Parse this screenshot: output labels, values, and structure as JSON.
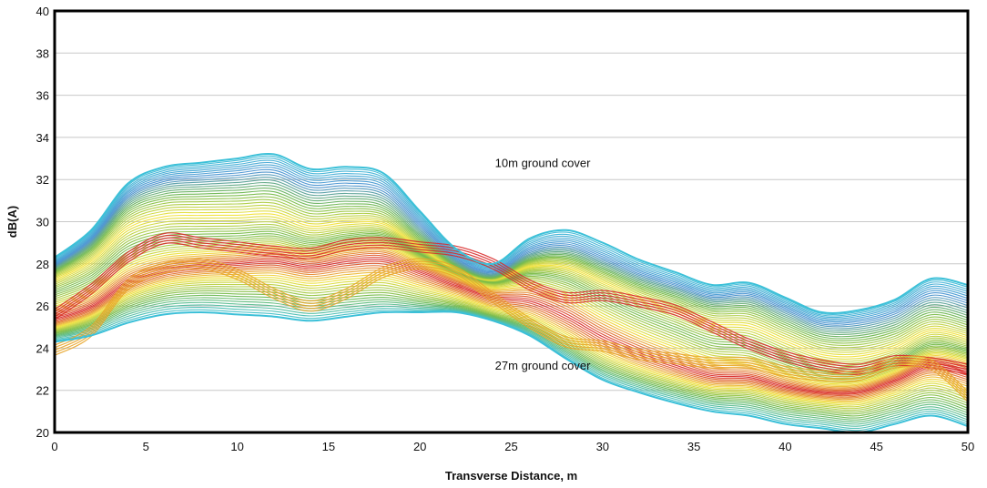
{
  "chart_data": {
    "type": "line",
    "title": "",
    "xlabel": "Transverse Distance, m",
    "ylabel": "dB(A)",
    "xlim": [
      0,
      50
    ],
    "ylim": [
      20,
      40
    ],
    "x_ticks": [
      "0",
      "5",
      "10",
      "15",
      "20",
      "25",
      "30",
      "35",
      "40",
      "45",
      "50"
    ],
    "y_ticks": [
      "20",
      "22",
      "24",
      "26",
      "28",
      "30",
      "32",
      "34",
      "36",
      "38",
      "40"
    ],
    "grid": "horizontal",
    "legend": "none",
    "annotations": [
      {
        "text": "10m ground cover",
        "x": 28,
        "y": 32.8
      },
      {
        "text": "27m ground cover",
        "x": 28,
        "y": 23.2
      }
    ],
    "series_count": 70,
    "color_ramp": [
      "#3cc0d8",
      "#4a90d0",
      "#6fb84a",
      "#f2e23a",
      "#e8a52a",
      "#d82b2b"
    ],
    "x": [
      0,
      2,
      4,
      6,
      8,
      10,
      12,
      14,
      16,
      18,
      20,
      22,
      24,
      26,
      28,
      30,
      32,
      34,
      36,
      38,
      40,
      42,
      44,
      46,
      48,
      50
    ],
    "envelope_top": [
      28.3,
      29.6,
      31.8,
      32.6,
      32.8,
      33.0,
      33.2,
      32.5,
      32.6,
      32.3,
      30.5,
      28.7,
      28.0,
      29.2,
      29.6,
      29.0,
      28.2,
      27.6,
      27.0,
      27.1,
      26.4,
      25.7,
      25.8,
      26.3,
      27.3,
      27.0
    ],
    "envelope_bottom": [
      24.3,
      24.6,
      25.2,
      25.6,
      25.7,
      25.6,
      25.5,
      25.3,
      25.5,
      25.7,
      25.7,
      25.7,
      25.3,
      24.6,
      23.5,
      22.5,
      21.9,
      21.4,
      21.0,
      20.8,
      20.4,
      20.2,
      20.0,
      20.4,
      20.8,
      20.3
    ],
    "highlight_curves": [
      {
        "name": "",
        "color": "#d82b2b",
        "values": [
          25.6,
          26.8,
          28.3,
          29.2,
          29.0,
          28.8,
          28.6,
          28.5,
          28.9,
          29.0,
          28.8,
          28.6,
          28.0,
          27.0,
          26.4,
          26.5,
          26.2,
          25.8,
          25.0,
          24.2,
          23.6,
          23.2,
          23.0,
          23.4,
          23.3,
          23.0
        ]
      },
      {
        "name": "",
        "color": "#e8a52a",
        "values": [
          23.9,
          24.8,
          27.0,
          27.8,
          28.0,
          27.5,
          26.6,
          26.0,
          26.6,
          27.6,
          28.0,
          27.6,
          26.4,
          25.2,
          24.3,
          24.1,
          23.7,
          23.5,
          23.3,
          23.3,
          22.9,
          22.7,
          22.7,
          23.3,
          23.2,
          21.7
        ]
      }
    ]
  }
}
